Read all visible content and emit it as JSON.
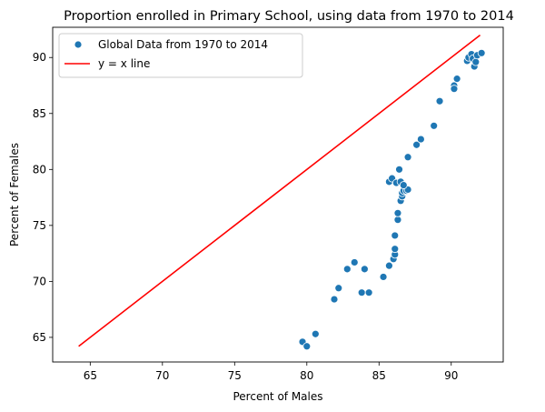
{
  "chart_data": {
    "type": "scatter",
    "title": "Proportion enrolled in Primary School, using data from 1970 to 2014",
    "xlabel": "Percent of Males",
    "ylabel": "Percent of Females",
    "xlim": [
      62.4,
      93.6
    ],
    "ylim": [
      62.8,
      92.7
    ],
    "xticks": [
      65,
      70,
      75,
      80,
      85,
      90
    ],
    "yticks": [
      65,
      70,
      75,
      80,
      85,
      90
    ],
    "grid": false,
    "legend_position": "top-left",
    "series": [
      {
        "name": "Global Data from 1970 to 2014",
        "kind": "scatter",
        "color": "#1f77b4",
        "points": [
          [
            79.7,
            64.6
          ],
          [
            80.0,
            64.2
          ],
          [
            80.6,
            65.3
          ],
          [
            81.9,
            68.4
          ],
          [
            82.2,
            69.4
          ],
          [
            82.8,
            71.1
          ],
          [
            83.3,
            71.7
          ],
          [
            83.8,
            69.0
          ],
          [
            84.0,
            71.1
          ],
          [
            84.3,
            69.0
          ],
          [
            85.3,
            70.4
          ],
          [
            85.7,
            71.4
          ],
          [
            86.0,
            72.0
          ],
          [
            86.1,
            72.4
          ],
          [
            86.1,
            72.9
          ],
          [
            86.1,
            74.1
          ],
          [
            86.3,
            75.5
          ],
          [
            86.3,
            76.1
          ],
          [
            86.5,
            77.2
          ],
          [
            86.6,
            77.6
          ],
          [
            86.6,
            77.9
          ],
          [
            86.8,
            78.4
          ],
          [
            86.7,
            78.1
          ],
          [
            86.9,
            78.1
          ],
          [
            87.0,
            78.2
          ],
          [
            85.7,
            78.9
          ],
          [
            85.9,
            79.2
          ],
          [
            86.2,
            78.8
          ],
          [
            86.5,
            78.9
          ],
          [
            86.7,
            78.6
          ],
          [
            86.4,
            80.0
          ],
          [
            87.0,
            81.1
          ],
          [
            87.6,
            82.2
          ],
          [
            87.9,
            82.7
          ],
          [
            88.8,
            83.9
          ],
          [
            89.2,
            86.1
          ],
          [
            90.2,
            87.5
          ],
          [
            90.2,
            87.2
          ],
          [
            90.4,
            88.1
          ],
          [
            91.1,
            89.7
          ],
          [
            91.2,
            90.0
          ],
          [
            91.4,
            90.3
          ],
          [
            91.5,
            89.9
          ],
          [
            91.6,
            89.2
          ],
          [
            91.7,
            89.6
          ],
          [
            91.8,
            90.2
          ],
          [
            92.1,
            90.4
          ]
        ]
      },
      {
        "name": "y = x line",
        "kind": "line",
        "color": "#ff0000",
        "x": [
          64.2,
          92.0
        ],
        "y": [
          64.2,
          92.0
        ]
      }
    ]
  }
}
